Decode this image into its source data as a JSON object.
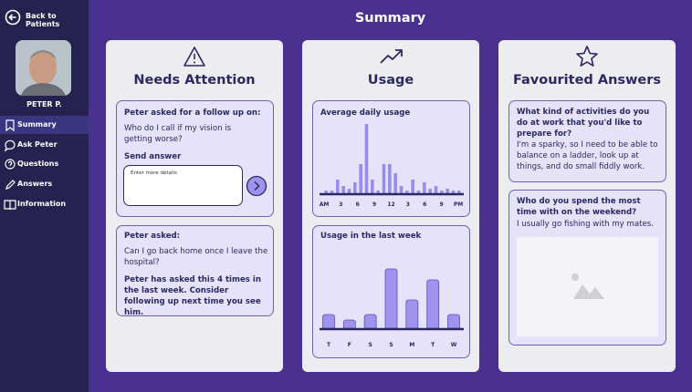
{
  "sidebar": {
    "back": "Back to Patients",
    "patient": "PETER P.",
    "nav": [
      "Summary",
      "Ask Peter",
      "Questions",
      "Answers",
      "Information"
    ],
    "selected": 0
  },
  "header": {
    "title": "Summary"
  },
  "needs_attention": {
    "title": "Needs Attention",
    "follow_up": {
      "heading": "Peter asked for a follow up on:",
      "question": "Who do I call if my vision is getting worse?",
      "send_label": "Send answer",
      "placeholder": "Enter more details"
    },
    "repeat": {
      "heading": "Peter asked:",
      "question": "Can I go back home once I leave the hospital?",
      "note": "Peter has asked this 4 times in the last week. Consider following up next time you see him."
    }
  },
  "usage": {
    "title": "Usage",
    "daily": {
      "title": "Average daily usage",
      "labels": [
        "AM",
        "3",
        "6",
        "9",
        "12",
        "3",
        "6",
        "9",
        "PM"
      ],
      "values": [
        3,
        3,
        15,
        8,
        5,
        12,
        32,
        76,
        15,
        3,
        32,
        32,
        22,
        8,
        3,
        15,
        3,
        12,
        5,
        8,
        3,
        5,
        3,
        3
      ]
    },
    "weekly": {
      "title": "Usage in the last week",
      "categories": [
        "T",
        "F",
        "S",
        "S",
        "M",
        "T",
        "W"
      ],
      "values": [
        15,
        9,
        15,
        65,
        31,
        53,
        15
      ]
    }
  },
  "favourites": {
    "title": "Favourited Answers",
    "items": [
      {
        "question": "What kind of activities do you do at work that you'd like to prepare for?",
        "answer": "I'm a sparky, so I need to be able to balance on a ladder, look up at things, and do small fiddly work."
      },
      {
        "question": "Who do you spend the most time with on the weekend?",
        "answer": "I usually go fishing with my mates."
      }
    ]
  }
}
